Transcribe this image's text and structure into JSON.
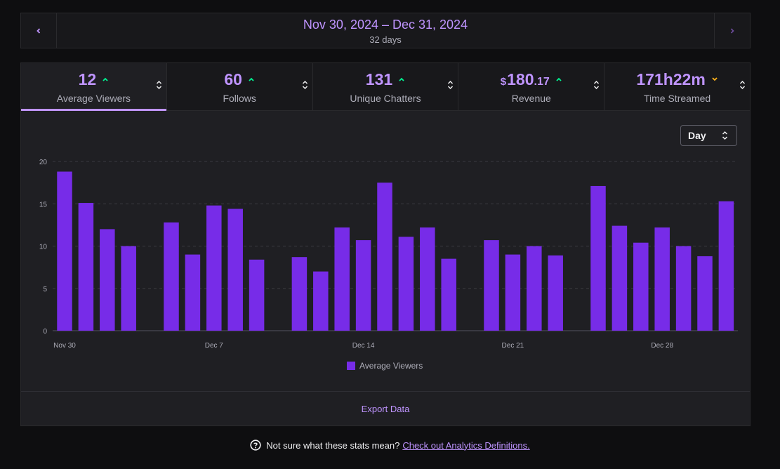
{
  "date_range": {
    "title": "Nov 30, 2024 – Dec 31, 2024",
    "subtitle": "32 days",
    "prev_icon": "chevron-left-icon",
    "next_icon": "chevron-right-icon"
  },
  "stats": [
    {
      "value": "12",
      "label": "Average Viewers",
      "trend": "up",
      "active": true
    },
    {
      "value": "60",
      "label": "Follows",
      "trend": "up",
      "active": false
    },
    {
      "value": "131",
      "label": "Unique Chatters",
      "trend": "up",
      "active": false
    },
    {
      "currency": "$",
      "value": "180",
      "cents": ".17",
      "label": "Revenue",
      "trend": "up",
      "active": false
    },
    {
      "value": "171h22m",
      "label": "Time Streamed",
      "trend": "down",
      "active": false
    }
  ],
  "interval_select": {
    "value": "Day"
  },
  "colors": {
    "accent": "#bf94ff",
    "bar": "#772ce8",
    "trend_up": "#00f593",
    "trend_down": "#ffb31a"
  },
  "chart_data": {
    "type": "bar",
    "categories": [
      "Nov 30",
      "Dec 1",
      "Dec 2",
      "Dec 3",
      "Dec 4",
      "Dec 5",
      "Dec 6",
      "Dec 7",
      "Dec 8",
      "Dec 9",
      "Dec 10",
      "Dec 11",
      "Dec 12",
      "Dec 13",
      "Dec 14",
      "Dec 15",
      "Dec 16",
      "Dec 17",
      "Dec 18",
      "Dec 19",
      "Dec 20",
      "Dec 21",
      "Dec 22",
      "Dec 23",
      "Dec 24",
      "Dec 25",
      "Dec 26",
      "Dec 27",
      "Dec 28",
      "Dec 29",
      "Dec 30",
      "Dec 31"
    ],
    "series": [
      {
        "name": "Average Viewers",
        "values": [
          18.8,
          15.1,
          12.0,
          10.0,
          0,
          12.8,
          9.0,
          14.8,
          14.4,
          8.4,
          0,
          8.7,
          7.0,
          12.2,
          10.7,
          17.5,
          11.1,
          12.2,
          8.5,
          0,
          10.7,
          9.0,
          10.0,
          8.9,
          0,
          17.1,
          12.4,
          10.4,
          12.2,
          10.0,
          8.8,
          15.3
        ]
      }
    ],
    "xticks": [
      "Nov 30",
      "Dec 7",
      "Dec 14",
      "Dec 21",
      "Dec 28"
    ],
    "yticks": [
      0,
      5,
      10,
      15,
      20
    ],
    "ylim": [
      0,
      20
    ],
    "legend": "bottom-center"
  },
  "export_label": "Export Data",
  "footer": {
    "text": "Not sure what these stats mean?",
    "link": "Check out Analytics Definitions."
  }
}
